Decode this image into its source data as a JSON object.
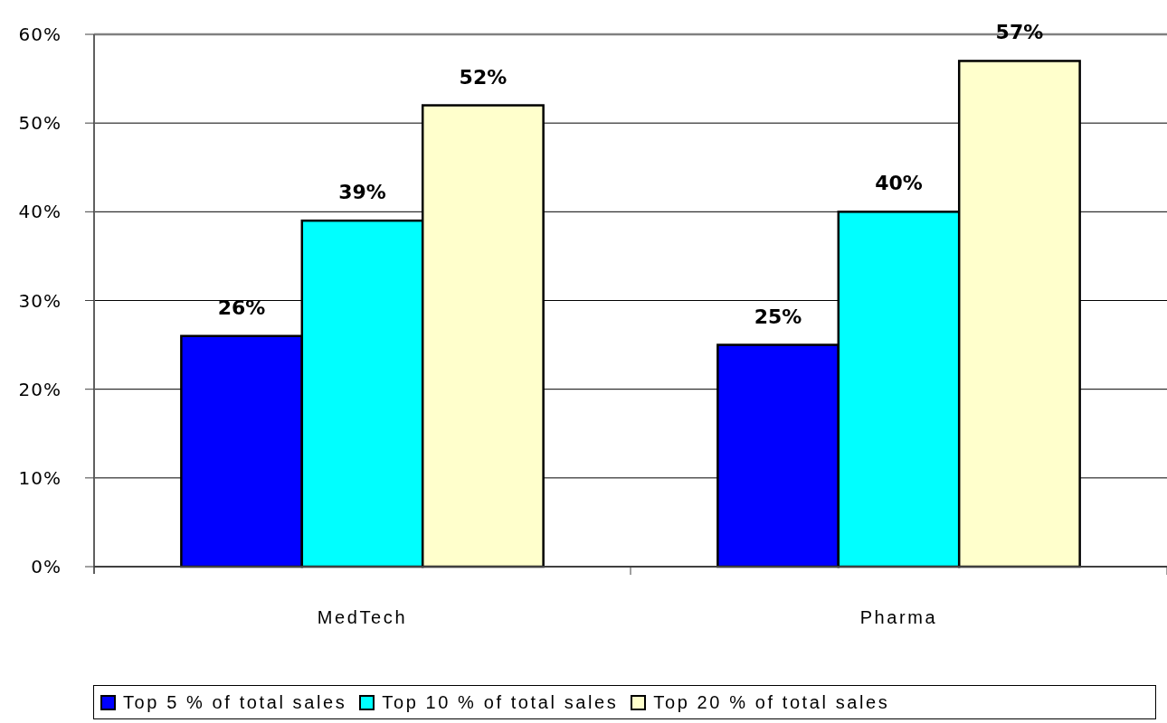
{
  "chart_data": {
    "type": "bar",
    "categories": [
      "MedTech",
      "Pharma"
    ],
    "series": [
      {
        "name": "Top 5 % of total sales",
        "color": "#0000ff",
        "values": [
          26,
          25
        ],
        "value_labels": [
          "26%",
          "25%"
        ]
      },
      {
        "name": "Top 10 % of total sales",
        "color": "#00ffff",
        "values": [
          39,
          40
        ],
        "value_labels": [
          "39%",
          "40%"
        ]
      },
      {
        "name": "Top 20 % of total sales",
        "color": "#ffffcc",
        "values": [
          52,
          57
        ],
        "value_labels": [
          "52%",
          "57%"
        ]
      }
    ],
    "ylim": [
      0,
      60
    ],
    "yticks": [
      {
        "value": 0,
        "label": "0%"
      },
      {
        "value": 10,
        "label": "10%"
      },
      {
        "value": 20,
        "label": "20%"
      },
      {
        "value": 30,
        "label": "30%"
      },
      {
        "value": 40,
        "label": "40%"
      },
      {
        "value": 50,
        "label": "50%"
      },
      {
        "value": 60,
        "label": "60%"
      }
    ],
    "grid": "y",
    "legend": "bottom"
  }
}
